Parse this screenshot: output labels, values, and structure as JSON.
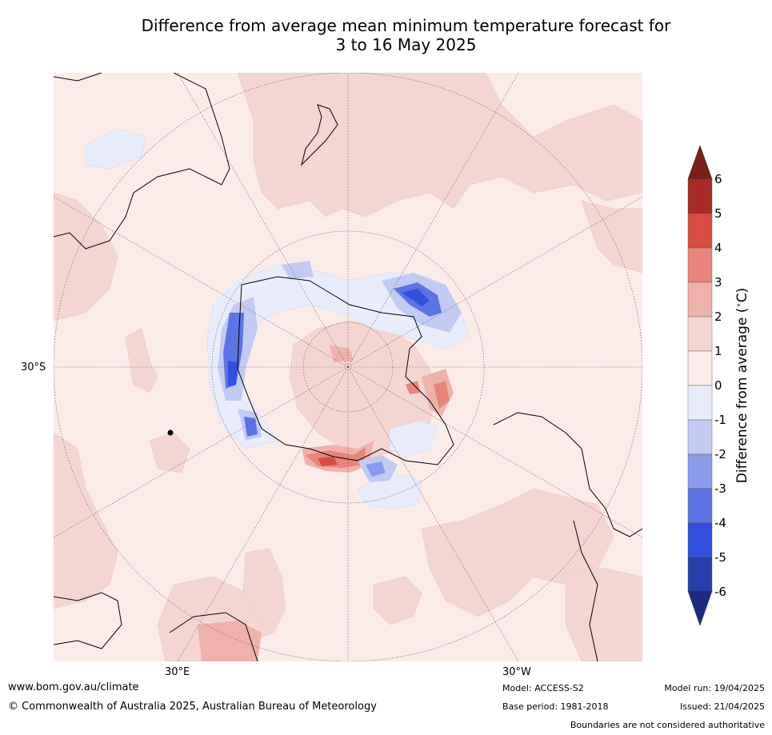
{
  "title_line1": "Difference from average mean minimum temperature forecast for",
  "title_line2": "3 to 16 May 2025",
  "map": {
    "projection": "south-polar-stereographic",
    "lat_label": "30°S",
    "lon_labels": [
      "30°E",
      "30°W"
    ],
    "colors": {
      "land_outline": "#000000",
      "graticule": "#555555"
    }
  },
  "colorbar": {
    "label": "Difference from average (°C)",
    "label_prefix": "Difference from average (",
    "label_suffix": "C)",
    "ticks": [
      "6",
      "5",
      "4",
      "3",
      "2",
      "1",
      "0",
      "-1",
      "-2",
      "-3",
      "-4",
      "-5",
      "-6"
    ],
    "bins": [
      {
        "range": [
          5,
          6
        ],
        "color": "#a82a24"
      },
      {
        "range": [
          4,
          5
        ],
        "color": "#d94d40"
      },
      {
        "range": [
          3,
          4
        ],
        "color": "#e8857a"
      },
      {
        "range": [
          2,
          3
        ],
        "color": "#efb2aa"
      },
      {
        "range": [
          1,
          2
        ],
        "color": "#f5d5d2"
      },
      {
        "range": [
          0,
          1
        ],
        "color": "#fbebe9"
      },
      {
        "range": [
          -1,
          0
        ],
        "color": "#e9edfb"
      },
      {
        "range": [
          -2,
          -1
        ],
        "color": "#c2caf3"
      },
      {
        "range": [
          -3,
          -2
        ],
        "color": "#8a9bec"
      },
      {
        "range": [
          -4,
          -3
        ],
        "color": "#5b73e3"
      },
      {
        "range": [
          -5,
          -4
        ],
        "color": "#3150de"
      },
      {
        "range": [
          -6,
          -5
        ],
        "color": "#253ea8"
      }
    ],
    "over_color": "#7a1f19",
    "under_color": "#1e2a80"
  },
  "footer": {
    "website": "www.bom.gov.au/climate",
    "copyright": "© Commonwealth of Australia 2025, Australian Bureau of Meteorology",
    "model": "Model: ACCESS-S2",
    "base_period": "Base period: 1981-2018",
    "model_run": "Model run: 19/04/2025",
    "issued": "Issued: 21/04/2025",
    "disclaimer": "Boundaries are not considered authoritative"
  }
}
